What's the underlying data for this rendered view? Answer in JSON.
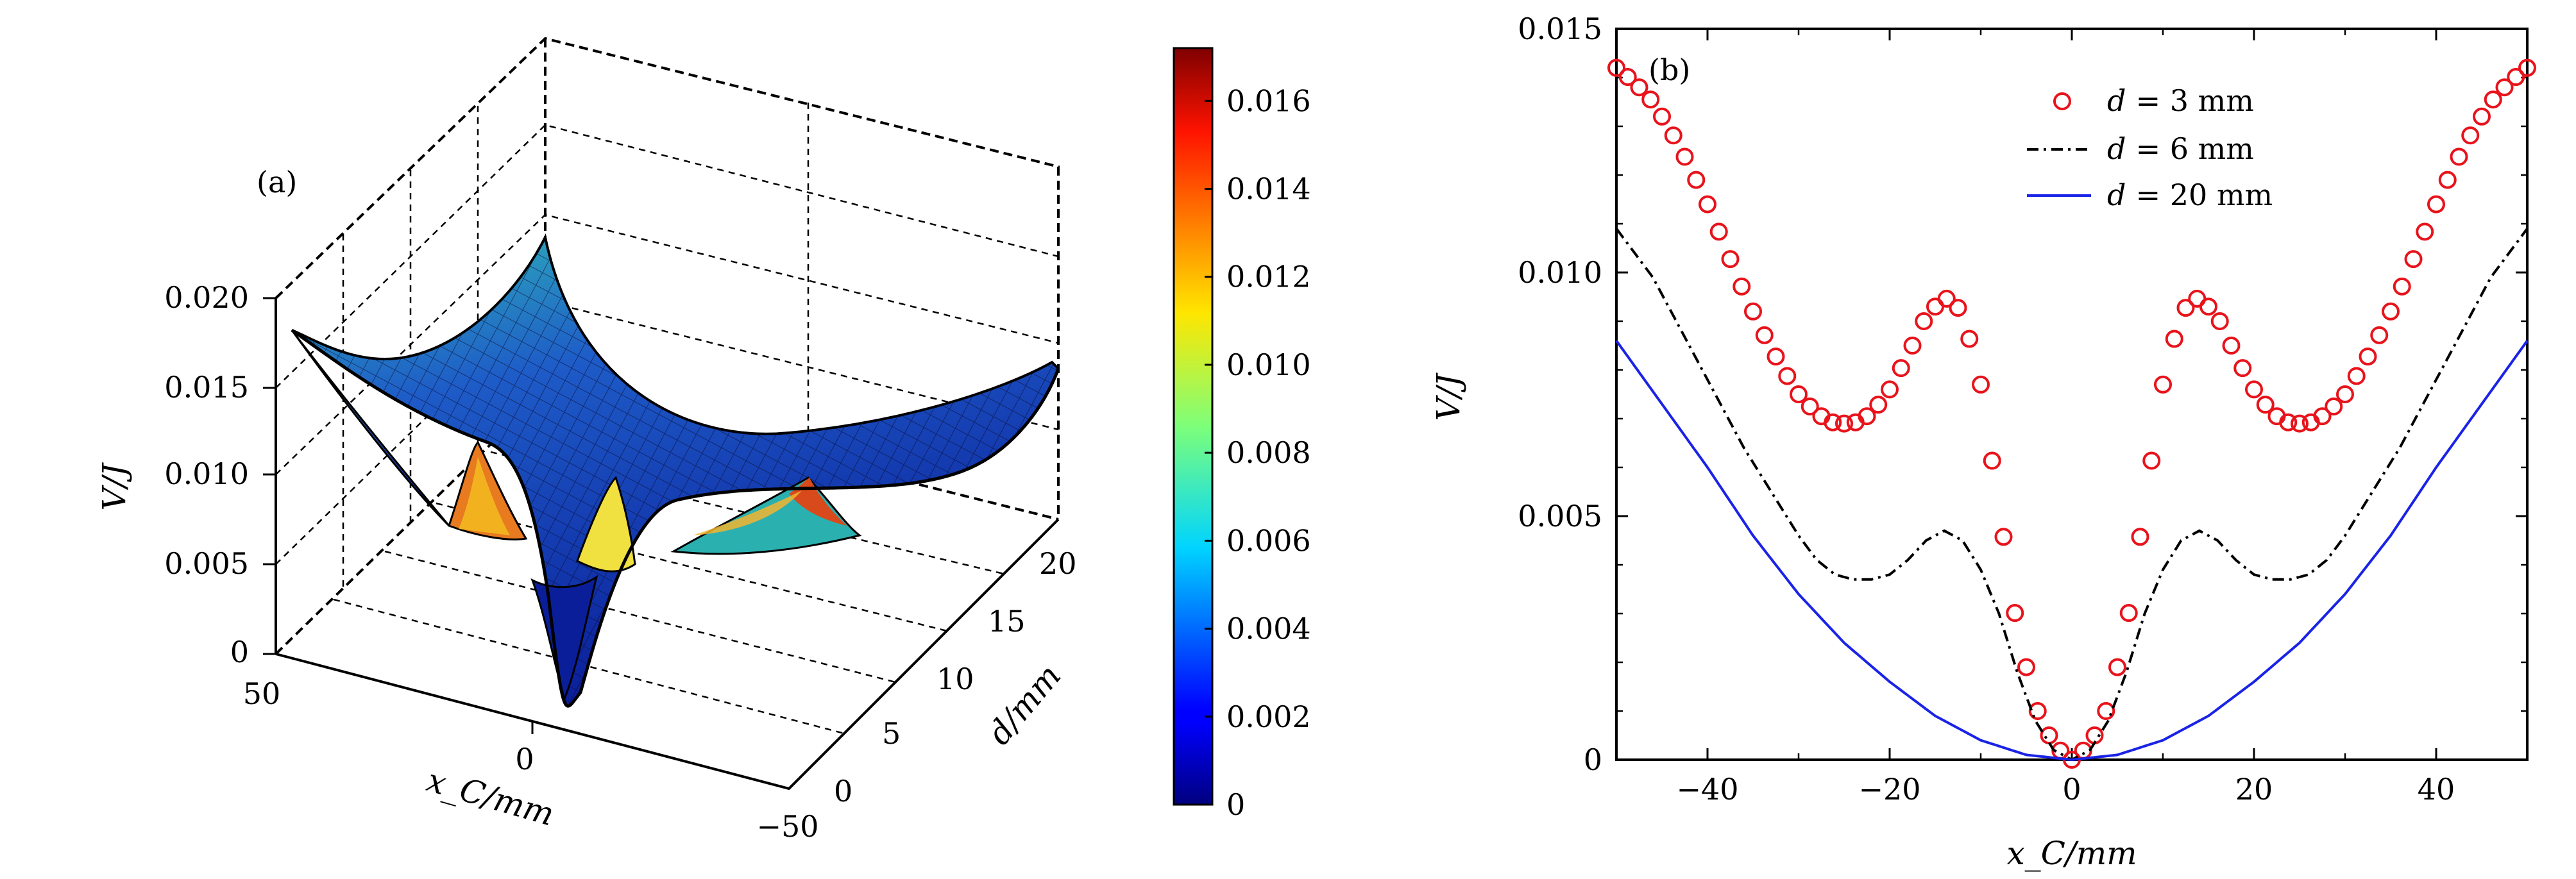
{
  "chart_data": [
    {
      "type": "surface3d",
      "panel_label": "(a)",
      "zlabel": "V/J",
      "xlabel": "x_C/mm",
      "ylabel": "d/mm",
      "z_ticks": [
        "0",
        "0.005",
        "0.010",
        "0.015",
        "0.020"
      ],
      "x_ticks": [
        "50",
        "0",
        "−50"
      ],
      "y_ticks": [
        "0",
        "5",
        "10",
        "15",
        "20"
      ],
      "xlim": [
        -50,
        50
      ],
      "ylim": [
        0,
        20
      ],
      "zlim": [
        0,
        0.02
      ],
      "colorbar": {
        "range": [
          0,
          0.0172
        ],
        "ticks": [
          "0",
          "0.002",
          "0.004",
          "0.006",
          "0.008",
          "0.010",
          "0.012",
          "0.014",
          "0.016"
        ],
        "tick_values": [
          0,
          0.002,
          0.004,
          0.006,
          0.008,
          0.01,
          0.012,
          0.014,
          0.016
        ],
        "colormap": "jet"
      },
      "surface_notes": "V(x_C, d): bowl shaped; at small d two peaks near x_C = ±14 mm and a dip to 0 at x_C = 0; at d = 20 mm a smooth parabola reaching about 0.0086 J at x_C = ±50 mm"
    },
    {
      "type": "line",
      "panel_label": "(b)",
      "xlabel": "x_C/mm",
      "ylabel": "V/J",
      "xlim": [
        -50,
        50
      ],
      "ylim": [
        0,
        0.015
      ],
      "x_ticks": [
        "−40",
        "−20",
        "0",
        "20",
        "40"
      ],
      "x_tick_values": [
        -40,
        -20,
        0,
        20,
        40
      ],
      "y_ticks": [
        "0",
        "0.005",
        "0.010",
        "0.015"
      ],
      "y_tick_values": [
        0,
        0.005,
        0.01,
        0.015
      ],
      "legend": {
        "position": "top-center",
        "entries": [
          {
            "var": "d",
            "text": " = 3 mm",
            "style": "circles",
            "color": "#e8131b"
          },
          {
            "var": "d",
            "text": " = 6 mm",
            "style": "dash-dot",
            "color": "#000000"
          },
          {
            "var": "d",
            "text": " = 20 mm",
            "style": "solid",
            "color": "#1a23e6"
          }
        ]
      },
      "series": [
        {
          "name": "d = 3 mm",
          "x": [
            0,
            2,
            4,
            6,
            8,
            10,
            12,
            14,
            16,
            18,
            20,
            22,
            24,
            26,
            28,
            30,
            32,
            34,
            36,
            38,
            40,
            42,
            44,
            46,
            48,
            50
          ],
          "y": [
            0,
            0.0003,
            0.0011,
            0.0027,
            0.0052,
            0.0077,
            0.0092,
            0.0095,
            0.0091,
            0.0083,
            0.0076,
            0.0071,
            0.0069,
            0.0069,
            0.0071,
            0.0075,
            0.0081,
            0.0088,
            0.0096,
            0.0105,
            0.0114,
            0.0122,
            0.0129,
            0.0135,
            0.0139,
            0.0142
          ],
          "symmetric_about_zero": true
        },
        {
          "name": "d = 6 mm",
          "x": [
            0,
            2,
            4,
            6,
            8,
            10,
            12,
            14,
            16,
            18,
            20,
            22,
            24,
            26,
            28,
            30,
            32,
            34,
            36,
            38,
            40,
            42,
            44,
            46,
            48,
            50
          ],
          "y": [
            0,
            0.0002,
            0.0008,
            0.0018,
            0.003,
            0.0039,
            0.0045,
            0.0047,
            0.0045,
            0.0041,
            0.0038,
            0.0037,
            0.0037,
            0.0038,
            0.0041,
            0.0046,
            0.0052,
            0.0058,
            0.0064,
            0.0071,
            0.0078,
            0.0085,
            0.0092,
            0.0099,
            0.0104,
            0.0109
          ],
          "symmetric_about_zero": true
        },
        {
          "name": "d = 20 mm",
          "x": [
            0,
            5,
            10,
            15,
            20,
            25,
            30,
            35,
            40,
            45,
            50
          ],
          "y": [
            0,
            0.0001,
            0.0004,
            0.0009,
            0.0016,
            0.0024,
            0.0034,
            0.0046,
            0.006,
            0.0073,
            0.0086
          ],
          "symmetric_about_zero": true
        }
      ]
    }
  ]
}
